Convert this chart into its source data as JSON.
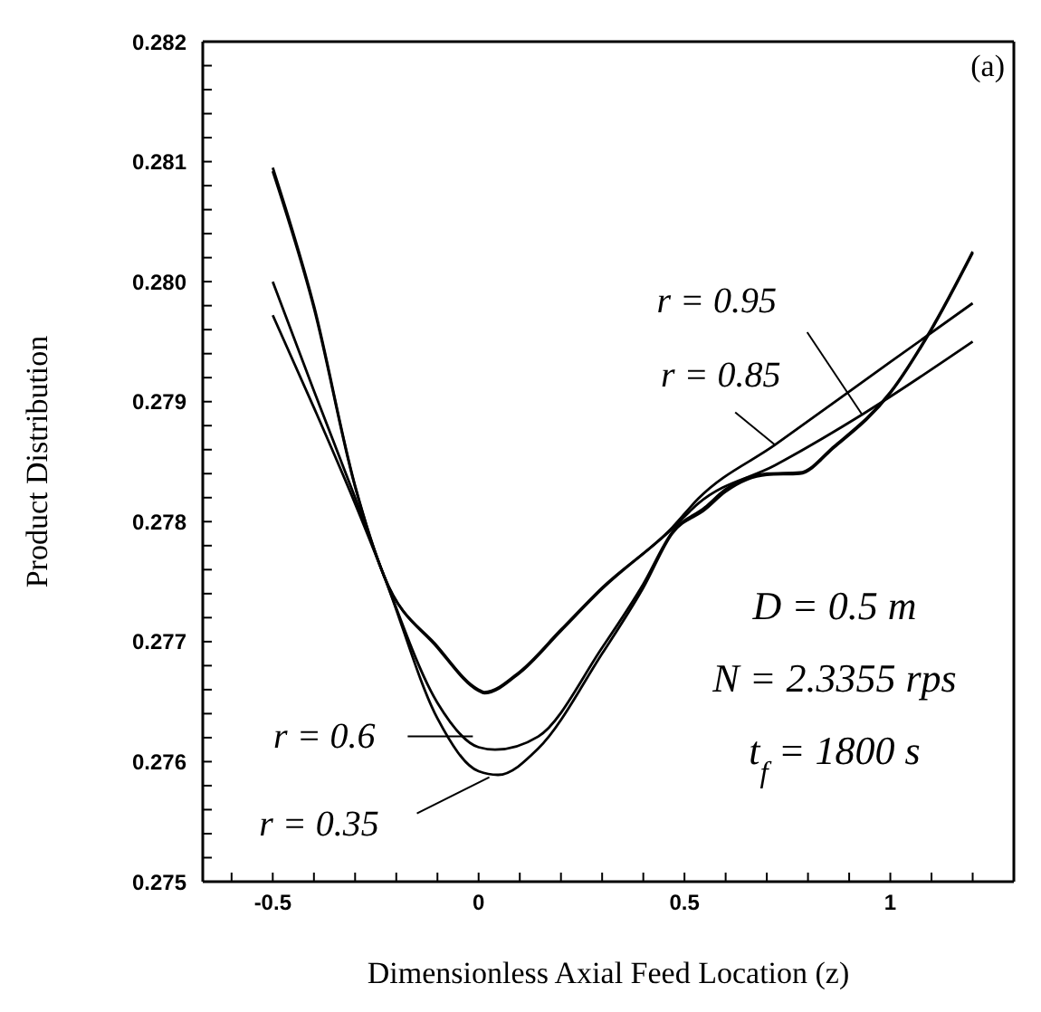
{
  "chart_data": {
    "type": "line",
    "xlabel": "Dimensionless Axial Feed Location  (z)",
    "ylabel": "Product Distribution",
    "xlim": [
      -0.67,
      1.3
    ],
    "xticks": [
      {
        "value": -0.6,
        "label": null
      },
      -0.5,
      {
        "value": -0.4,
        "label": null
      },
      {
        "value": -0.3,
        "label": null
      },
      {
        "value": -0.2,
        "label": null
      },
      {
        "value": -0.1,
        "label": null
      },
      0,
      {
        "value": 0.1,
        "label": null
      },
      {
        "value": 0.2,
        "label": null
      },
      {
        "value": 0.3,
        "label": null
      },
      {
        "value": 0.4,
        "label": null
      },
      0.5,
      {
        "value": 0.6,
        "label": null
      },
      {
        "value": 0.7,
        "label": null
      },
      {
        "value": 0.8,
        "label": null
      },
      {
        "value": 0.9,
        "label": null
      },
      1,
      {
        "value": 1.1,
        "label": null
      },
      {
        "value": 1.2,
        "label": null
      }
    ],
    "ylim": [
      0.275,
      0.282
    ],
    "yticks": [
      {
        "value": 0.275,
        "label": "0.275"
      },
      {
        "value": 0.2752,
        "label": null
      },
      {
        "value": 0.2754,
        "label": null
      },
      {
        "value": 0.2756,
        "label": null
      },
      {
        "value": 0.2758,
        "label": null
      },
      {
        "value": 0.276,
        "label": "0.276"
      },
      {
        "value": 0.2762,
        "label": null
      },
      {
        "value": 0.2764,
        "label": null
      },
      {
        "value": 0.2766,
        "label": null
      },
      {
        "value": 0.2768,
        "label": null
      },
      {
        "value": 0.277,
        "label": "0.277"
      },
      {
        "value": 0.2772,
        "label": null
      },
      {
        "value": 0.2774,
        "label": null
      },
      {
        "value": 0.2776,
        "label": null
      },
      {
        "value": 0.2778,
        "label": null
      },
      {
        "value": 0.278,
        "label": "0.278"
      },
      {
        "value": 0.2782,
        "label": null
      },
      {
        "value": 0.2784,
        "label": null
      },
      {
        "value": 0.2786,
        "label": null
      },
      {
        "value": 0.2788,
        "label": null
      },
      {
        "value": 0.279,
        "label": "0.279"
      },
      {
        "value": 0.2792,
        "label": null
      },
      {
        "value": 0.2794,
        "label": null
      },
      {
        "value": 0.2796,
        "label": null
      },
      {
        "value": 0.2798,
        "label": null
      },
      {
        "value": 0.28,
        "label": "0.280"
      },
      {
        "value": 0.2802,
        "label": null
      },
      {
        "value": 0.2804,
        "label": null
      },
      {
        "value": 0.2806,
        "label": null
      },
      {
        "value": 0.2808,
        "label": null
      },
      {
        "value": 0.281,
        "label": "0.281"
      },
      {
        "value": 0.2812,
        "label": null
      },
      {
        "value": 0.2814,
        "label": null
      },
      {
        "value": 0.2816,
        "label": null
      },
      {
        "value": 0.2818,
        "label": null
      },
      {
        "value": 0.282,
        "label": "0.282"
      }
    ],
    "marker": "none",
    "line_style": "solid",
    "series": [
      {
        "color": "#000000",
        "x": [
          -0.5,
          -0.4,
          -0.3,
          -0.23,
          -0.1,
          0,
          0.047,
          0.145,
          0.3,
          0.4,
          0.47,
          0.55,
          0.6,
          0.7,
          0.78,
          0.864,
          1.0,
          1.1,
          1.2
        ],
        "values": [
          0.27972,
          0.27895,
          0.27815,
          0.27755,
          0.27636,
          0.27592,
          0.27589,
          0.27611,
          0.2769,
          0.27745,
          0.2779,
          0.2781,
          0.27825,
          0.27839,
          0.2784,
          0.27862,
          0.27907,
          0.2796,
          0.28024
        ]
      },
      {
        "color": "#000000",
        "x": [
          -0.5,
          -0.4,
          -0.3,
          -0.23,
          -0.1,
          0,
          0.04,
          0.145,
          0.3,
          0.4,
          0.47,
          0.55,
          0.6,
          0.7,
          0.78,
          0.864,
          1.0,
          1.1,
          1.2
        ],
        "values": [
          0.28,
          0.27909,
          0.2782,
          0.27755,
          0.27649,
          0.27612,
          0.2761,
          0.27621,
          0.27695,
          0.27748,
          0.27791,
          0.27812,
          0.27827,
          0.2784,
          0.27841,
          0.27863,
          0.27908,
          0.27961,
          0.28025
        ]
      },
      {
        "color": "#000000",
        "x": [
          -0.5,
          -0.4,
          -0.3,
          -0.23,
          -0.1,
          0,
          0.014,
          0.1,
          0.2,
          0.3,
          0.47,
          0.533,
          0.72,
          1.0,
          1.2
        ],
        "values": [
          0.28095,
          0.2798,
          0.2783,
          0.27755,
          0.27696,
          0.2766,
          0.27658,
          0.27675,
          0.2771,
          0.27745,
          0.27795,
          0.27819,
          0.27864,
          0.27933,
          0.27982
        ]
      },
      {
        "color": "#000000",
        "x": [
          -0.5,
          -0.4,
          -0.3,
          -0.23,
          -0.1,
          0,
          0.014,
          0.1,
          0.2,
          0.3,
          0.47,
          0.533,
          0.72,
          0.935,
          1.2
        ],
        "values": [
          0.28092,
          0.27978,
          0.27829,
          0.27755,
          0.27695,
          0.27659,
          0.27657,
          0.27674,
          0.27709,
          0.27744,
          0.27794,
          0.27815,
          0.27847,
          0.2789,
          0.2795
        ]
      }
    ],
    "annotations": [
      {
        "text": "r = 0.95",
        "x": 0.93,
        "y": 0.2789
      },
      {
        "text": "r = 0.85",
        "x": 0.72,
        "y": 0.27864
      },
      {
        "text": "r = 0.6",
        "x": -0.014,
        "y": 0.27621
      },
      {
        "text": "r = 0.35",
        "x": 0.026,
        "y": 0.27587
      },
      "(a)",
      "D = 0.5 m",
      "N = 2.3355 rps",
      "t$_{f}$ = 1800 s"
    ]
  }
}
